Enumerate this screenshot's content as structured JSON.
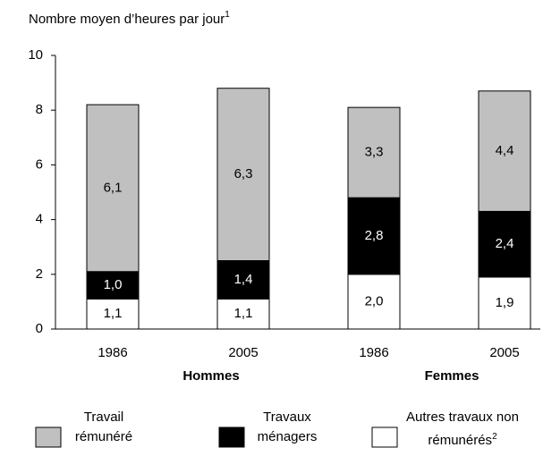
{
  "chart_data": {
    "type": "stacked_bar",
    "ylabel": "Nombre moyen d’heures par jour",
    "ylabel_note": "1",
    "categories": [
      "1986",
      "2005",
      "1986",
      "2005"
    ],
    "groups": [
      "Hommes",
      "Femmes"
    ],
    "series": [
      {
        "name": "Autres travaux non rémunérés",
        "note": "2",
        "color": "#ffffff",
        "label_color": "#000000",
        "values": [
          1.1,
          1.1,
          2.0,
          1.9
        ],
        "value_labels": [
          "1,1",
          "1,1",
          "2,0",
          "1,9"
        ]
      },
      {
        "name": "Travaux ménagers",
        "color": "#000000",
        "label_color": "#ffffff",
        "values": [
          1.0,
          1.4,
          2.8,
          2.4
        ],
        "value_labels": [
          "1,0",
          "1,4",
          "2,8",
          "2,4"
        ]
      },
      {
        "name": "Travail rémunéré",
        "color": "#c0c0c0",
        "label_color": "#000000",
        "values": [
          6.1,
          6.3,
          3.3,
          4.4
        ],
        "value_labels": [
          "6,1",
          "6,3",
          "3,3",
          "4,4"
        ]
      }
    ],
    "ylim": [
      0,
      10
    ],
    "yticks": [
      0,
      2,
      4,
      6,
      8,
      10
    ]
  }
}
